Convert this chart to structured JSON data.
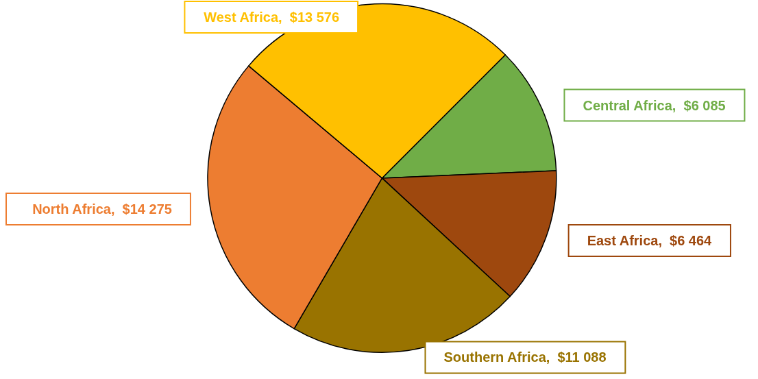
{
  "chart_data": {
    "type": "pie",
    "categories": [
      "Central Africa",
      "East Africa",
      "Southern Africa",
      "North Africa",
      "West Africa"
    ],
    "values": [
      6085,
      6464,
      11088,
      14275,
      13576
    ],
    "value_labels": [
      "$6 085",
      "$6 464",
      "$11 088",
      "$14 275",
      "$13 576"
    ],
    "colors": [
      "#70ad47",
      "#9e480e",
      "#997300",
      "#ed7d31",
      "#ffc000"
    ],
    "legend": false
  }
}
